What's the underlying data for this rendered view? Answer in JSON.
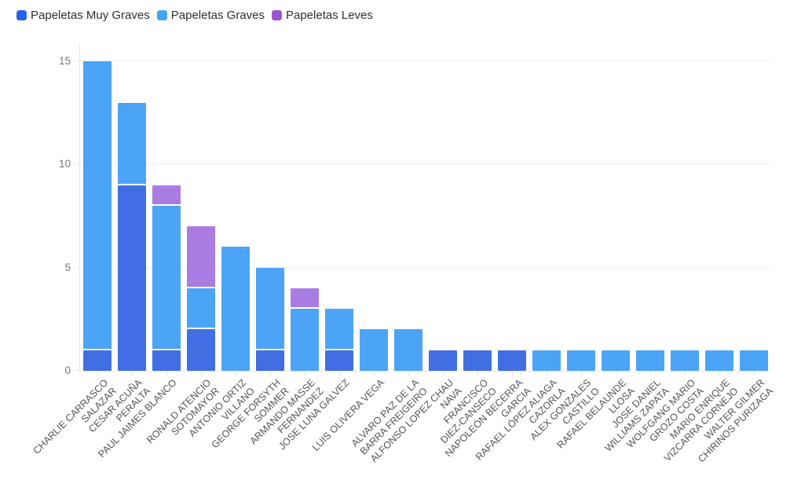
{
  "chart_data": {
    "type": "bar",
    "stacked": true,
    "orientation": "vertical",
    "title": "",
    "xlabel": "",
    "ylabel": "",
    "ylim": [
      0,
      15
    ],
    "yticks": [
      0,
      5,
      10,
      15
    ],
    "grid": "horizontal",
    "legend_position": "top-left",
    "categories": [
      "CHARLIE CARRASCO SALAZAR",
      "CESAR ACUÑA PERALTA",
      "PAUL JAIMES BLANCO",
      "RONALD ATENCIO SOTOMAYOR",
      "ANTONIO ORTIZ VILLANO",
      "GEORGE FORSYTH SOMMER",
      "ARMANDO MASSE FERNANDEZ",
      "JOSE LUNA GALVEZ",
      "LUIS OLIVERA VEGA",
      "ALVARO PAZ DE LA BARRA FREIGEIRO",
      "ALFONSO LOPEZ CHAU NAVA",
      "FRANCISCO DIEZ-CANSECO",
      "NAPOLEÓN BECERRA GARCIA",
      "RAFAEL LÓPEZ ALIAGA CAZORLA",
      "ALEX GONZALES CASTILLO",
      "RAFAEL BELAUNDE LLOSA",
      "JOSE DANIEL WILLIAMS ZAPATA",
      "WOLFGANG MARIO GROZO COSTA",
      "MARIO ENRIQUE VIZCARRA CORNEJO",
      "WALTER GILMER CHIRINOS PURIZAGA"
    ],
    "category_lines": [
      [
        "CHARLIE CARRASCO",
        "SALAZAR"
      ],
      [
        "CESAR ACUÑA",
        "PERALTA"
      ],
      [
        "PAUL JAIMES BLANCO"
      ],
      [
        "RONALD ATENCIO",
        "SOTOMAYOR"
      ],
      [
        "ANTONIO ORTIZ",
        "VILLANO"
      ],
      [
        "GEORGE FORSYTH",
        "SOMMER"
      ],
      [
        "ARMANDO MASSE",
        "FERNANDEZ"
      ],
      [
        "JOSE LUNA GALVEZ"
      ],
      [
        "LUIS OLIVERA VEGA"
      ],
      [
        "ALVARO PAZ DE LA",
        "BARRA FREIGEIRO"
      ],
      [
        "ALFONSO LOPEZ CHAU",
        "NAVA"
      ],
      [
        "FRANCISCO",
        "DIEZ-CANSECO"
      ],
      [
        "NAPOLEÓN BECERRA",
        "GARCIA"
      ],
      [
        "RAFAEL LÓPEZ ALIAGA",
        "CAZORLA"
      ],
      [
        "ALEX GONZALES",
        "CASTILLO"
      ],
      [
        "RAFAEL BELAUNDE",
        "LLOSA"
      ],
      [
        "JOSE DANIEL",
        "WILLIAMS ZAPATA"
      ],
      [
        "WOLFGANG MARIO",
        "GROZO COSTA"
      ],
      [
        "MARIO ENRIQUE",
        "VIZCARRA CORNEJO"
      ],
      [
        "WALTER GILMER",
        "CHIRINOS PURIZAGA"
      ]
    ],
    "series": [
      {
        "name": "Papeletas Muy Graves",
        "color": "#416ee3",
        "legend_color": "#2563eb",
        "values": [
          1,
          9,
          1,
          2,
          0,
          1,
          0,
          1,
          0,
          0,
          1,
          1,
          1,
          0,
          0,
          0,
          0,
          0,
          0,
          0
        ]
      },
      {
        "name": "Papeletas Graves",
        "color": "#4ba4f5",
        "legend_color": "#42a5f5",
        "values": [
          14,
          4,
          7,
          2,
          6,
          4,
          3,
          2,
          2,
          2,
          0,
          0,
          0,
          1,
          1,
          1,
          1,
          1,
          1,
          1
        ]
      },
      {
        "name": "Papeletas Leves",
        "color": "#a97ce2",
        "legend_color": "#9c55cf",
        "values": [
          0,
          0,
          1,
          3,
          0,
          0,
          1,
          0,
          0,
          0,
          0,
          0,
          0,
          0,
          0,
          0,
          0,
          0,
          0,
          0
        ]
      }
    ],
    "totals": [
      15,
      13,
      9,
      7,
      6,
      5,
      4,
      3,
      2,
      2,
      1,
      1,
      1,
      1,
      1,
      1,
      1,
      1,
      1,
      1
    ]
  },
  "colors": {
    "background": "#ffffff",
    "gridline": "#efefef",
    "axis_line": "#e6e6e6",
    "y_tick_label": "#777777",
    "x_category_label": "#545454",
    "legend_text": "#2f2f2f"
  }
}
